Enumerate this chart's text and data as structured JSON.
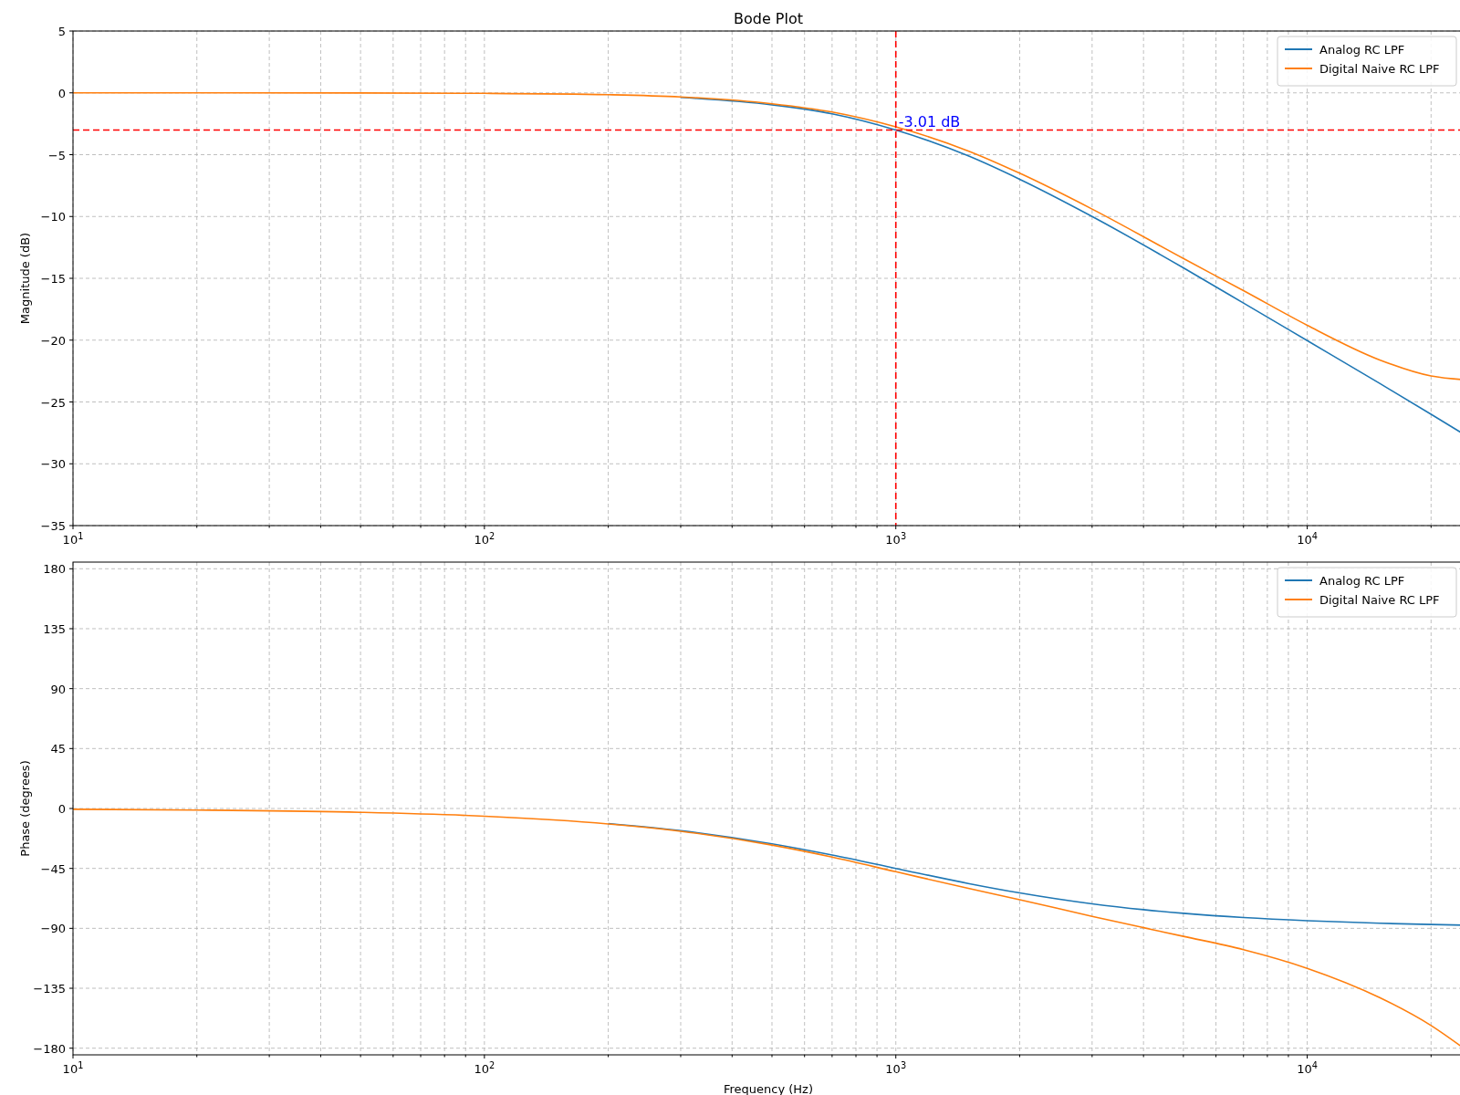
{
  "chart_data": [
    {
      "type": "line",
      "title": "Bode Plot",
      "ylabel": "Magnitude (dB)",
      "xlim": [
        10,
        24000
      ],
      "ylim": [
        -35,
        5
      ],
      "log": "x",
      "grid": true,
      "legend": "top right",
      "xticks": [
        {
          "value": 10,
          "label": "10$^{1}$"
        },
        {
          "value": 20,
          "label": null
        },
        {
          "value": 30,
          "label": null
        },
        {
          "value": 40,
          "label": null
        },
        {
          "value": 50,
          "label": null
        },
        {
          "value": 60,
          "label": null
        },
        {
          "value": 70,
          "label": null
        },
        {
          "value": 80,
          "label": null
        },
        {
          "value": 90,
          "label": null
        },
        {
          "value": 100,
          "label": "10$^{2}$"
        },
        {
          "value": 200,
          "label": null
        },
        {
          "value": 300,
          "label": null
        },
        {
          "value": 400,
          "label": null
        },
        {
          "value": 500,
          "label": null
        },
        {
          "value": 600,
          "label": null
        },
        {
          "value": 700,
          "label": null
        },
        {
          "value": 800,
          "label": null
        },
        {
          "value": 900,
          "label": null
        },
        {
          "value": 1000,
          "label": "10$^{3}$"
        },
        {
          "value": 2000,
          "label": null
        },
        {
          "value": 3000,
          "label": null
        },
        {
          "value": 4000,
          "label": null
        },
        {
          "value": 5000,
          "label": null
        },
        {
          "value": 6000,
          "label": null
        },
        {
          "value": 7000,
          "label": null
        },
        {
          "value": 8000,
          "label": null
        },
        {
          "value": 9000,
          "label": null
        },
        {
          "value": 10000,
          "label": "10$^{4}$"
        },
        {
          "value": 20000,
          "label": null
        }
      ],
      "yticks": [
        5,
        0,
        -5,
        -10,
        -15,
        -20,
        -25,
        -30,
        -35
      ],
      "x": [
        10,
        20,
        50,
        100,
        200,
        300,
        500,
        700,
        1000,
        1500,
        2000,
        3000,
        5000,
        7000,
        10000,
        15000,
        20000,
        24000
      ],
      "series": [
        {
          "name": "Analog RC LPF",
          "color": "#1f77b4",
          "values": [
            null,
            null,
            null,
            null,
            null,
            -0.37,
            -0.97,
            -1.7,
            -3.01,
            -5.1,
            -6.99,
            -10,
            -14.15,
            -17,
            -20.04,
            -23.5,
            -26,
            -27.6
          ]
        },
        {
          "name": "Digital Naive RC LPF",
          "color": "#ff7f0e",
          "values": [
            0,
            0,
            -0.01,
            -0.04,
            -0.15,
            -0.33,
            -0.88,
            -1.55,
            -2.75,
            -4.7,
            -6.5,
            -9.4,
            -13.4,
            -16,
            -18.8,
            -21.6,
            -22.9,
            -23.2
          ]
        }
      ],
      "ref_lines": [
        {
          "axis": "y",
          "value": -3.01,
          "color": "#ff0000",
          "line_style": "dashed"
        },
        {
          "axis": "x",
          "value": 1000,
          "color": "#ff0000",
          "line_style": "dashed"
        }
      ],
      "annotations": [
        {
          "text": "-3.01 dB",
          "x": 1000,
          "y": -3.01
        }
      ]
    },
    {
      "type": "line",
      "xlabel": "Frequency (Hz)",
      "ylabel": "Phase (degrees)",
      "xlim": [
        10,
        24000
      ],
      "ylim": [
        -185,
        185
      ],
      "log": "x",
      "grid": true,
      "legend": "top right",
      "xticks": [
        {
          "value": 10,
          "label": "10$^{1}$"
        },
        {
          "value": 20,
          "label": null
        },
        {
          "value": 30,
          "label": null
        },
        {
          "value": 40,
          "label": null
        },
        {
          "value": 50,
          "label": null
        },
        {
          "value": 60,
          "label": null
        },
        {
          "value": 70,
          "label": null
        },
        {
          "value": 80,
          "label": null
        },
        {
          "value": 90,
          "label": null
        },
        {
          "value": 100,
          "label": "10$^{2}$"
        },
        {
          "value": 200,
          "label": null
        },
        {
          "value": 300,
          "label": null
        },
        {
          "value": 400,
          "label": null
        },
        {
          "value": 500,
          "label": null
        },
        {
          "value": 600,
          "label": null
        },
        {
          "value": 700,
          "label": null
        },
        {
          "value": 800,
          "label": null
        },
        {
          "value": 900,
          "label": null
        },
        {
          "value": 1000,
          "label": "10$^{3}$"
        },
        {
          "value": 2000,
          "label": null
        },
        {
          "value": 3000,
          "label": null
        },
        {
          "value": 4000,
          "label": null
        },
        {
          "value": 5000,
          "label": null
        },
        {
          "value": 6000,
          "label": null
        },
        {
          "value": 7000,
          "label": null
        },
        {
          "value": 8000,
          "label": null
        },
        {
          "value": 9000,
          "label": null
        },
        {
          "value": 10000,
          "label": "10$^{4}$"
        },
        {
          "value": 20000,
          "label": null
        }
      ],
      "yticks": [
        180,
        135,
        90,
        45,
        0,
        -45,
        -90,
        -135,
        -180
      ],
      "x": [
        10,
        20,
        50,
        100,
        200,
        300,
        500,
        700,
        1000,
        1500,
        2000,
        3000,
        4000,
        5000,
        7000,
        10000,
        15000,
        20000,
        24000
      ],
      "series": [
        {
          "name": "Analog RC LPF",
          "color": "#1f77b4",
          "values": [
            null,
            null,
            null,
            null,
            -11.3,
            -16.7,
            -26.6,
            -35,
            -45,
            -56.3,
            -63.4,
            -71.6,
            -76,
            -78.7,
            -81.9,
            -84.3,
            -86.2,
            -87.1,
            -87.6
          ]
        },
        {
          "name": "Digital Naive RC LPF",
          "color": "#ff7f0e",
          "values": [
            -0.6,
            -1.2,
            -2.9,
            -5.8,
            -11.6,
            -17.1,
            -27.5,
            -36.5,
            -47.5,
            -60,
            -68.5,
            -81,
            -89.5,
            -96,
            -106,
            -120,
            -142,
            -163,
            -180
          ]
        }
      ]
    }
  ]
}
